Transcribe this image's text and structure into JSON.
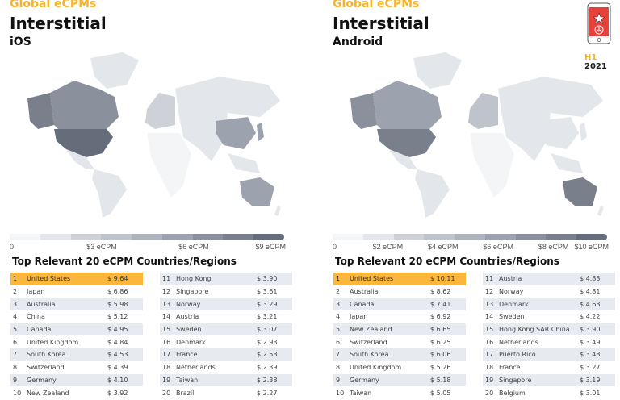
{
  "badge": {
    "icon": "phone-star-download-icon",
    "h_label": "H1",
    "year": "2021"
  },
  "colors": {
    "accent": "#f7b32b",
    "highlight_row": "#fbb73c",
    "scale": [
      "#f4f5f7",
      "#e3e6ea",
      "#ced2d8",
      "#bfc4cc",
      "#aeb4bd",
      "#9ca3ae",
      "#8a919d",
      "#79808c",
      "#666d7a"
    ]
  },
  "chart_data": [
    {
      "type": "table",
      "supertitle": "Global eCPMs",
      "title": "Interstitial",
      "subtitle": "iOS",
      "legend_ticks": [
        "0",
        "$3 eCPM",
        "$6 eCPM",
        "$9 eCPM"
      ],
      "legend_range": [
        0,
        9
      ],
      "table_title": "Top Relevant 20 eCPM Countries/Regions",
      "rows": [
        [
          "1",
          "United States",
          "$ 9.64"
        ],
        [
          "2",
          "Japan",
          "$ 6.86"
        ],
        [
          "3",
          "Australia",
          "$ 5.98"
        ],
        [
          "4",
          "China",
          "$ 5.12"
        ],
        [
          "5",
          "Canada",
          "$ 4.95"
        ],
        [
          "6",
          "United Kingdom",
          "$ 4.84"
        ],
        [
          "7",
          "South Korea",
          "$ 4.53"
        ],
        [
          "8",
          "Switzerland",
          "$ 4.39"
        ],
        [
          "9",
          "Germany",
          "$ 4.10"
        ],
        [
          "10",
          "New Zealand",
          "$ 3.92"
        ],
        [
          "11",
          "Hong Kong",
          "$ 3.90"
        ],
        [
          "12",
          "Singapore",
          "$ 3.61"
        ],
        [
          "13",
          "Norway",
          "$ 3.29"
        ],
        [
          "14",
          "Austria",
          "$ 3.21"
        ],
        [
          "15",
          "Sweden",
          "$ 3.07"
        ],
        [
          "16",
          "Denmark",
          "$ 2.93"
        ],
        [
          "17",
          "France",
          "$ 2.58"
        ],
        [
          "18",
          "Netherlands",
          "$ 2.39"
        ],
        [
          "19",
          "Taiwan",
          "$ 2.38"
        ],
        [
          "20",
          "Brazil",
          "$ 2.27"
        ]
      ]
    },
    {
      "type": "table",
      "supertitle": "Global eCPMs",
      "title": "Interstitial",
      "subtitle": "Android",
      "legend_ticks": [
        "0",
        "$2 eCPM",
        "$4 eCPM",
        "$6 eCPM",
        "$8 eCPM",
        "$10 eCPM"
      ],
      "legend_range": [
        0,
        10
      ],
      "table_title": "Top Relevant 20 eCPM Countries/Regions",
      "rows": [
        [
          "1",
          "United States",
          "$ 10.11"
        ],
        [
          "2",
          "Australia",
          "$ 8.62"
        ],
        [
          "3",
          "Canada",
          "$ 7.41"
        ],
        [
          "4",
          "Japan",
          "$ 6.92"
        ],
        [
          "5",
          "New Zealand",
          "$ 6.65"
        ],
        [
          "6",
          "Switzerland",
          "$ 6.25"
        ],
        [
          "7",
          "South Korea",
          "$ 6.06"
        ],
        [
          "8",
          "United Kingdom",
          "$ 5.26"
        ],
        [
          "9",
          "Germany",
          "$ 5.18"
        ],
        [
          "10",
          "Taiwan",
          "$ 5.05"
        ],
        [
          "11",
          "Austria",
          "$ 4.83"
        ],
        [
          "12",
          "Norway",
          "$ 4.81"
        ],
        [
          "13",
          "Denmark",
          "$ 4.63"
        ],
        [
          "14",
          "Sweden",
          "$ 4.22"
        ],
        [
          "15",
          "Hong Kong SAR China",
          "$ 3.90"
        ],
        [
          "16",
          "Netherlands",
          "$ 3.49"
        ],
        [
          "17",
          "Puerto Rico",
          "$ 3.43"
        ],
        [
          "18",
          "France",
          "$ 3.27"
        ],
        [
          "19",
          "Singapore",
          "$ 3.19"
        ],
        [
          "20",
          "Belgium",
          "$ 3.01"
        ]
      ]
    }
  ]
}
